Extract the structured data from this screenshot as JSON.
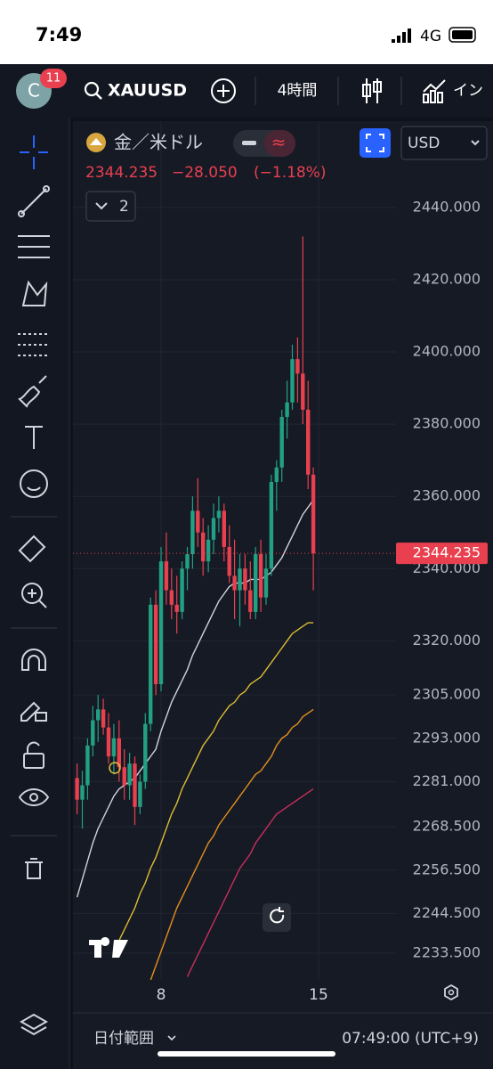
{
  "status_bar": {
    "time": "7:49",
    "network": "4G"
  },
  "toolbar": {
    "badge": "11",
    "symbol": "XAUUSD",
    "interval": "4時間",
    "indicators": "イン"
  },
  "symbol_header": {
    "name": "金／米ドル",
    "change": "−28.050",
    "change_pct": "(−1.18%)",
    "collapsed_count": "2",
    "currency": "USD"
  },
  "chart_data": {
    "type": "candlestick",
    "categories": [
      null,
      null,
      null,
      null,
      null,
      null,
      null,
      null,
      null,
      null,
      null,
      null,
      null,
      null,
      null,
      null,
      "8",
      null,
      null,
      null,
      null,
      null,
      null,
      null,
      null,
      null,
      null,
      null,
      null,
      null,
      null,
      null,
      null,
      null,
      null,
      null,
      null,
      null,
      null,
      null,
      null,
      null,
      null,
      null,
      null,
      null,
      "15"
    ],
    "open": [
      2282,
      2276,
      2280,
      2291,
      2298,
      2301,
      2296,
      2288,
      2293,
      2285,
      2280,
      2286,
      2274,
      2281,
      2297,
      2330,
      2308,
      2342,
      2334,
      2330,
      2328,
      2340,
      2344,
      2356,
      2350,
      2342,
      2348,
      2354,
      2356,
      2346,
      2338,
      2334,
      2340,
      2334,
      2328,
      2344,
      2332,
      2340,
      2364,
      2368,
      2382,
      2386,
      2398,
      2394,
      2384,
      2366,
      null
    ],
    "high": [
      2286,
      2284,
      2293,
      2302,
      2305,
      2304,
      2300,
      2297,
      2298,
      2290,
      2289,
      2288,
      2283,
      2300,
      2332,
      2334,
      2346,
      2350,
      2340,
      2338,
      2342,
      2346,
      2360,
      2365,
      2354,
      2352,
      2358,
      2360,
      2358,
      2352,
      2348,
      2344,
      2344,
      2342,
      2346,
      2348,
      2344,
      2366,
      2370,
      2384,
      2392,
      2402,
      2404,
      2432,
      2392,
      2368,
      null
    ],
    "low": [
      2272,
      2268,
      2276,
      2288,
      2292,
      2294,
      2286,
      2283,
      2281,
      2276,
      2276,
      2269,
      2272,
      2279,
      2295,
      2305,
      2306,
      2330,
      2326,
      2322,
      2326,
      2334,
      2340,
      2346,
      2338,
      2339,
      2344,
      2350,
      2342,
      2336,
      2326,
      2324,
      2330,
      2326,
      2326,
      2328,
      2330,
      2338,
      2356,
      2364,
      2376,
      2384,
      2386,
      2380,
      2362,
      2334,
      null
    ],
    "close": [
      2276,
      2280,
      2291,
      2298,
      2301,
      2296,
      2288,
      2293,
      2285,
      2280,
      2286,
      2274,
      2281,
      2297,
      2330,
      2308,
      2342,
      2334,
      2330,
      2328,
      2340,
      2344,
      2356,
      2350,
      2342,
      2348,
      2354,
      2356,
      2346,
      2338,
      2334,
      2340,
      2334,
      2328,
      2344,
      2332,
      2340,
      2364,
      2368,
      2382,
      2386,
      2398,
      2394,
      2384,
      2366,
      2344.235,
      null
    ],
    "up_color": "#22a083",
    "down_color": "#e8404f",
    "series": [
      {
        "color": "#d1d4dc",
        "values": [
          2249,
          2254,
          2259,
          2264,
          2268,
          2271,
          2274,
          2277,
          2279,
          2280,
          2281,
          2282,
          2284,
          2286,
          2288,
          2290,
          2295,
          2299,
          2303,
          2306,
          2309,
          2312,
          2316,
          2319,
          2322,
          2325,
          2328,
          2331,
          2333,
          2335,
          2336,
          2336,
          2336,
          2337,
          2337,
          2337,
          2338,
          2339,
          2341,
          2343,
          2346,
          2349,
          2352,
          2355,
          2357,
          2359,
          null
        ]
      },
      {
        "color": "#dcbc33",
        "values": [
          null,
          null,
          null,
          null,
          null,
          null,
          null,
          null,
          2237,
          2240,
          2243,
          2246,
          2250,
          2253,
          2257,
          2260,
          2264,
          2268,
          2272,
          2275,
          2279,
          2282,
          2285,
          2288,
          2291,
          2293,
          2295,
          2298,
          2300,
          2302,
          2303,
          2305,
          2306,
          2308,
          2309,
          2310,
          2312,
          2314,
          2316,
          2318,
          2320,
          2322,
          2323,
          2324,
          2325,
          2325,
          null
        ]
      },
      {
        "color": "#e3901c",
        "values": [
          null,
          null,
          null,
          null,
          null,
          null,
          null,
          null,
          null,
          null,
          null,
          null,
          null,
          null,
          2226,
          2230,
          2234,
          2238,
          2242,
          2246,
          2249,
          2252,
          2255,
          2258,
          2261,
          2264,
          2266,
          2269,
          2271,
          2273,
          2275,
          2277,
          2279,
          2281,
          2283,
          2284,
          2286,
          2288,
          2291,
          2293,
          2294,
          2296,
          2297,
          2299,
          2300,
          2301,
          null
        ]
      },
      {
        "color": "#c92e5c",
        "values": [
          null,
          null,
          null,
          null,
          null,
          null,
          null,
          null,
          null,
          null,
          null,
          null,
          null,
          null,
          null,
          null,
          null,
          null,
          null,
          null,
          null,
          2227,
          2230,
          2233,
          2236,
          2239,
          2242,
          2245,
          2248,
          2251,
          2254,
          2257,
          2259,
          2261,
          2264,
          2266,
          2268,
          2270,
          2272,
          2273,
          2274,
          2275,
          2276,
          2277,
          2278,
          2279,
          null
        ]
      }
    ],
    "ylim": [
      2226.1,
      2463.9
    ],
    "yticks": [
      {
        "value": 2440,
        "label": "2440.000"
      },
      {
        "value": 2420,
        "label": "2420.000"
      },
      {
        "value": 2400,
        "label": "2400.000"
      },
      {
        "value": 2380,
        "label": "2380.000"
      },
      {
        "value": 2360,
        "label": "2360.000"
      },
      {
        "value": 2340,
        "label": "2340.000"
      },
      {
        "value": 2320,
        "label": "2320.000"
      },
      {
        "value": 2305,
        "label": "2305.000"
      },
      {
        "value": 2293,
        "label": "2293.000"
      },
      {
        "value": 2281,
        "label": "2281.000"
      },
      {
        "value": 2268.5,
        "label": "2268.500"
      },
      {
        "value": 2256.5,
        "label": "2256.500"
      },
      {
        "value": 2244.5,
        "label": "2244.500"
      },
      {
        "value": 2233.5,
        "label": "2233.500"
      }
    ],
    "grid": true
  },
  "footer": {
    "range": "日付範囲",
    "clock": "07:49:00 (UTC+9)"
  }
}
